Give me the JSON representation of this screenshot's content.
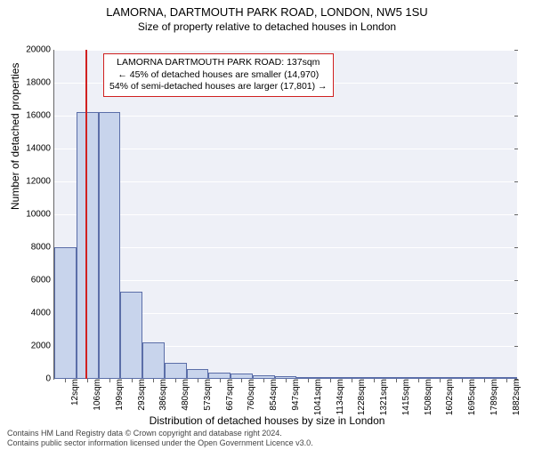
{
  "title": "LAMORNA, DARTMOUTH PARK ROAD, LONDON, NW5 1SU",
  "subtitle": "Size of property relative to detached houses in London",
  "chart": {
    "type": "histogram",
    "ylabel": "Number of detached properties",
    "xlabel": "Distribution of detached houses by size in London",
    "ylim": [
      0,
      20000
    ],
    "yticks": [
      0,
      2000,
      4000,
      6000,
      8000,
      10000,
      12000,
      14000,
      16000,
      18000,
      20000
    ],
    "xticks": [
      "12sqm",
      "106sqm",
      "199sqm",
      "293sqm",
      "386sqm",
      "480sqm",
      "573sqm",
      "667sqm",
      "760sqm",
      "854sqm",
      "947sqm",
      "1041sqm",
      "1134sqm",
      "1228sqm",
      "1321sqm",
      "1415sqm",
      "1508sqm",
      "1602sqm",
      "1695sqm",
      "1789sqm",
      "1882sqm"
    ],
    "bar_values": [
      8000,
      16200,
      16200,
      5300,
      2200,
      1000,
      600,
      400,
      300,
      200,
      150,
      120,
      100,
      90,
      80,
      70,
      60,
      50,
      45,
      40,
      38
    ],
    "bar_fill": "#c8d4ec",
    "bar_stroke": "#5b6ea8",
    "plot_bg": "#eef0f7",
    "grid_color": "#ffffff",
    "marker_line_color": "#d02020",
    "marker_position_value": "137sqm",
    "annotation": {
      "line1": "LAMORNA DARTMOUTH PARK ROAD: 137sqm",
      "line2": "← 45% of detached houses are smaller (14,970)",
      "line3": "54% of semi-detached houses are larger (17,801) →",
      "border_color": "#d02020"
    },
    "title_fontsize": 13,
    "label_fontsize": 12,
    "tick_fontsize": 10
  },
  "footer": {
    "line1": "Contains HM Land Registry data © Crown copyright and database right 2024.",
    "line2": "Contains public sector information licensed under the Open Government Licence v3.0."
  }
}
